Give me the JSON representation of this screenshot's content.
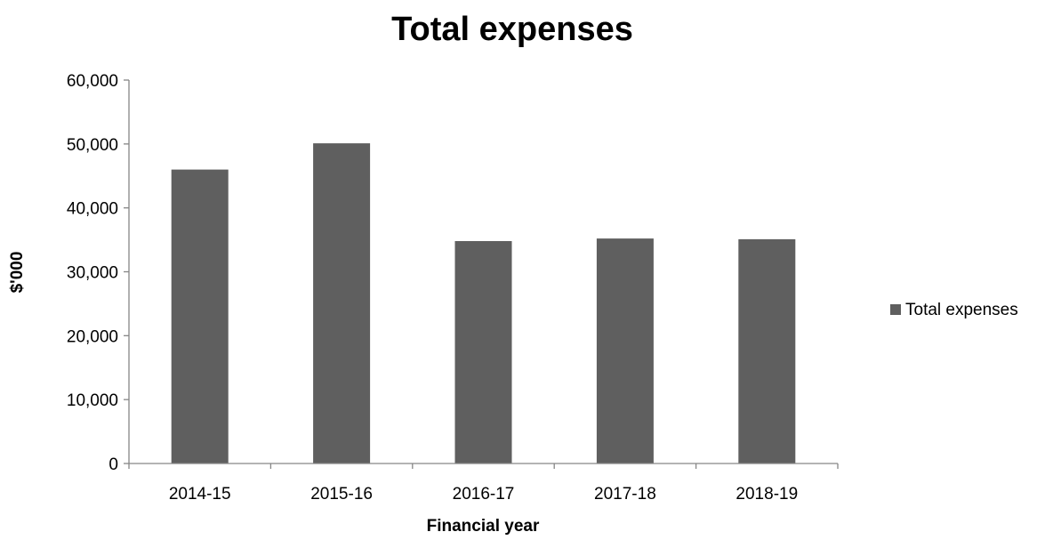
{
  "chart_data": {
    "type": "bar",
    "title": "Total expenses",
    "xlabel": "Financial year",
    "ylabel": "$'000",
    "categories": [
      "2014-15",
      "2015-16",
      "2016-17",
      "2017-18",
      "2018-19"
    ],
    "series": [
      {
        "name": "Total expenses",
        "values": [
          46000,
          50100,
          34800,
          35200,
          35100
        ],
        "color": "#5f5f5f"
      }
    ],
    "ylim": [
      0,
      60000
    ],
    "yticks": [
      0,
      10000,
      20000,
      30000,
      40000,
      50000,
      60000
    ],
    "ytick_labels": [
      "0",
      "10,000",
      "20,000",
      "30,000",
      "40,000",
      "50,000",
      "60,000"
    ],
    "grid": false,
    "legend": "right"
  }
}
